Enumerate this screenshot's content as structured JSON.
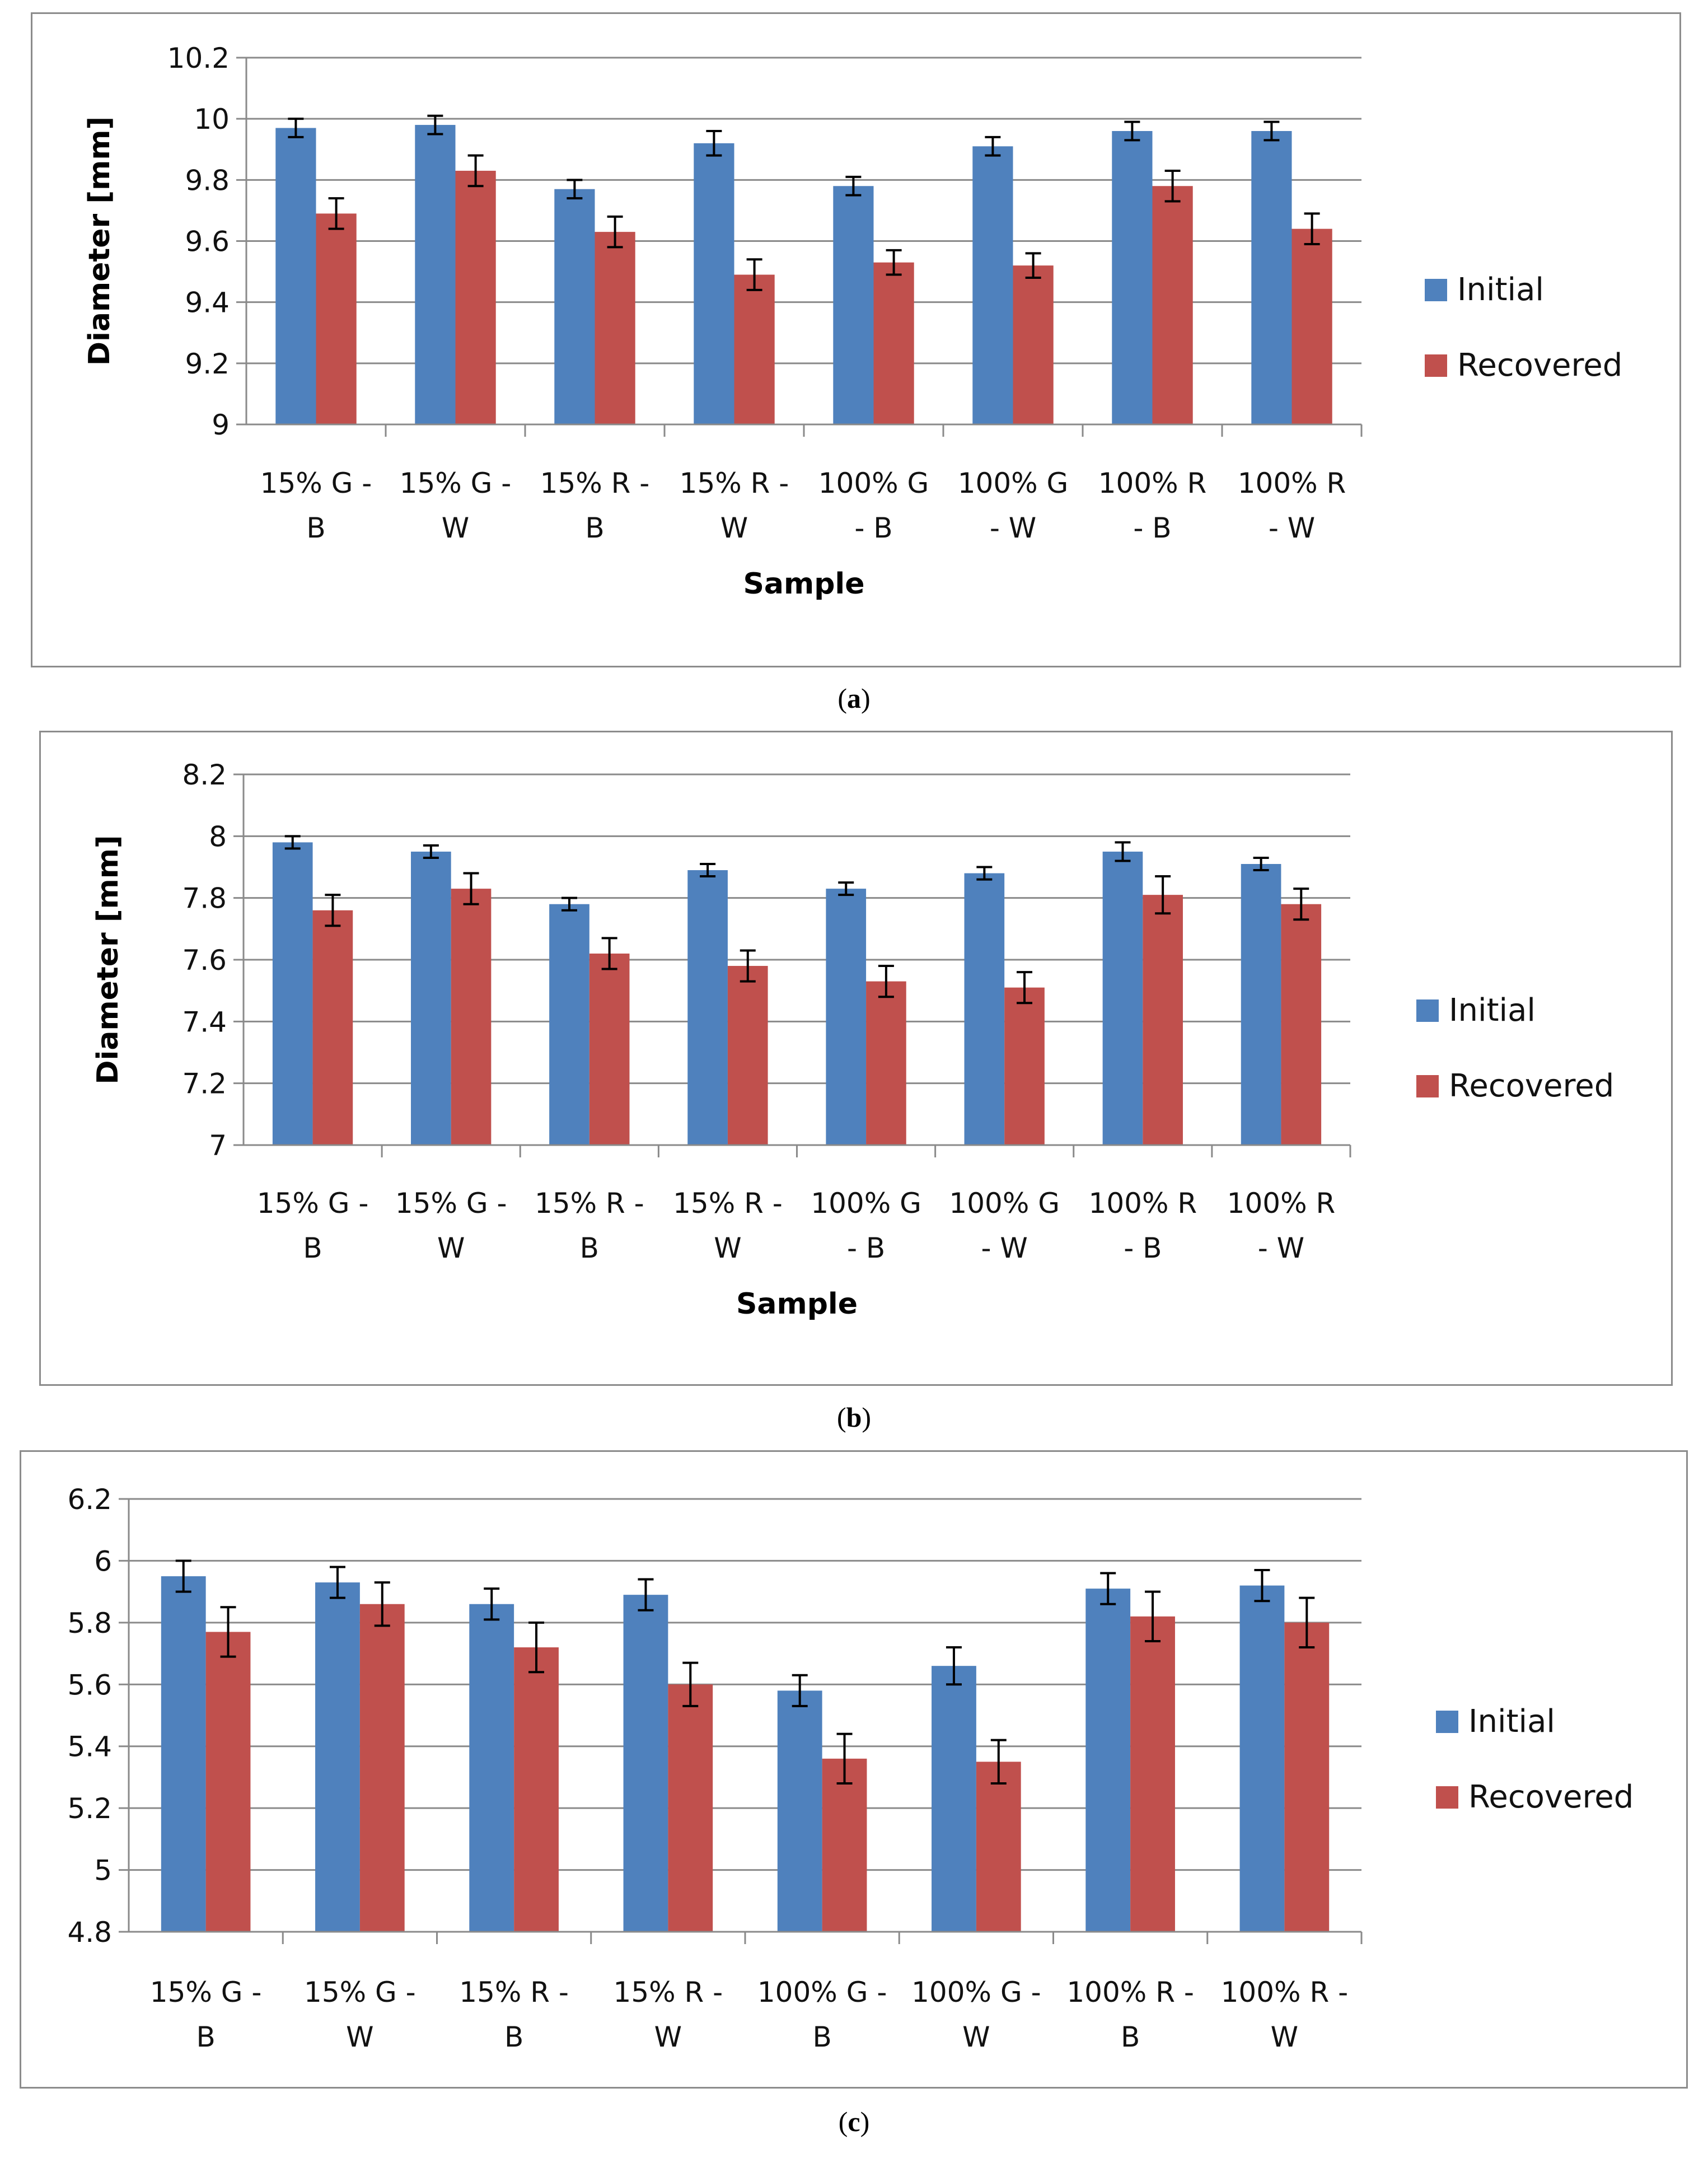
{
  "colors": {
    "initial": "#4f81bd",
    "recovered": "#c0504d",
    "grid": "#8a8a8a",
    "error": "#000000"
  },
  "chart_data": [
    {
      "id": "a",
      "type": "bar",
      "caption": "a",
      "categories": [
        [
          "15% G -",
          "B"
        ],
        [
          "15% G -",
          "W"
        ],
        [
          "15% R -",
          "B"
        ],
        [
          "15% R -",
          "W"
        ],
        [
          "100% G",
          "- B"
        ],
        [
          "100% G",
          "- W"
        ],
        [
          "100% R",
          "- B"
        ],
        [
          "100% R",
          "- W"
        ]
      ],
      "xlabel": "Sample",
      "ylabel": "Diameter [mm]",
      "ylim": [
        9,
        10.2
      ],
      "yticks": [
        9,
        9.2,
        9.4,
        9.6,
        9.8,
        10,
        10.2
      ],
      "ytick_labels": [
        "9",
        "9.2",
        "9.4",
        "9.6",
        "9.8",
        "10",
        "10.2"
      ],
      "series": [
        {
          "name": "Initial",
          "values": [
            9.97,
            9.98,
            9.77,
            9.92,
            9.78,
            9.91,
            9.96,
            9.96
          ],
          "errors": [
            0.03,
            0.03,
            0.03,
            0.04,
            0.03,
            0.03,
            0.03,
            0.03
          ]
        },
        {
          "name": "Recovered",
          "values": [
            9.69,
            9.83,
            9.63,
            9.49,
            9.53,
            9.52,
            9.78,
            9.64
          ],
          "errors": [
            0.05,
            0.05,
            0.05,
            0.05,
            0.04,
            0.04,
            0.05,
            0.05
          ]
        }
      ]
    },
    {
      "id": "b",
      "type": "bar",
      "caption": "b",
      "categories": [
        [
          "15% G -",
          "B"
        ],
        [
          "15% G -",
          "W"
        ],
        [
          "15% R -",
          "B"
        ],
        [
          "15% R -",
          "W"
        ],
        [
          "100% G",
          "- B"
        ],
        [
          "100% G",
          "- W"
        ],
        [
          "100% R",
          "- B"
        ],
        [
          "100% R",
          "- W"
        ]
      ],
      "xlabel": "Sample",
      "ylabel": "Diameter [mm]",
      "ylim": [
        7,
        8.2
      ],
      "yticks": [
        7,
        7.2,
        7.4,
        7.6,
        7.8,
        8,
        8.2
      ],
      "ytick_labels": [
        "7",
        "7.2",
        "7.4",
        "7.6",
        "7.8",
        "8",
        "8.2"
      ],
      "series": [
        {
          "name": "Initial",
          "values": [
            7.98,
            7.95,
            7.78,
            7.89,
            7.83,
            7.88,
            7.95,
            7.91
          ],
          "errors": [
            0.02,
            0.02,
            0.02,
            0.02,
            0.02,
            0.02,
            0.03,
            0.02
          ]
        },
        {
          "name": "Recovered",
          "values": [
            7.76,
            7.83,
            7.62,
            7.58,
            7.53,
            7.51,
            7.81,
            7.78
          ],
          "errors": [
            0.05,
            0.05,
            0.05,
            0.05,
            0.05,
            0.05,
            0.06,
            0.05
          ]
        }
      ]
    },
    {
      "id": "c",
      "type": "bar",
      "caption": "c",
      "categories": [
        [
          "15% G -",
          "B"
        ],
        [
          "15% G -",
          "W"
        ],
        [
          "15% R -",
          "B"
        ],
        [
          "15% R -",
          "W"
        ],
        [
          "100% G -",
          "B"
        ],
        [
          "100% G -",
          "W"
        ],
        [
          "100% R -",
          "B"
        ],
        [
          "100% R -",
          "W"
        ]
      ],
      "xlabel": "",
      "ylabel": "",
      "ylim": [
        4.8,
        6.2
      ],
      "yticks": [
        4.8,
        5,
        5.2,
        5.4,
        5.6,
        5.8,
        6,
        6.2
      ],
      "ytick_labels": [
        "4.8",
        "5",
        "5.2",
        "5.4",
        "5.6",
        "5.8",
        "6",
        "6.2"
      ],
      "series": [
        {
          "name": "Initial",
          "values": [
            5.95,
            5.93,
            5.86,
            5.89,
            5.58,
            5.66,
            5.91,
            5.92
          ],
          "errors": [
            0.05,
            0.05,
            0.05,
            0.05,
            0.05,
            0.06,
            0.05,
            0.05
          ]
        },
        {
          "name": "Recovered",
          "values": [
            5.77,
            5.86,
            5.72,
            5.6,
            5.36,
            5.35,
            5.82,
            5.8
          ],
          "errors": [
            0.08,
            0.07,
            0.08,
            0.07,
            0.08,
            0.07,
            0.08,
            0.08
          ]
        }
      ]
    }
  ]
}
